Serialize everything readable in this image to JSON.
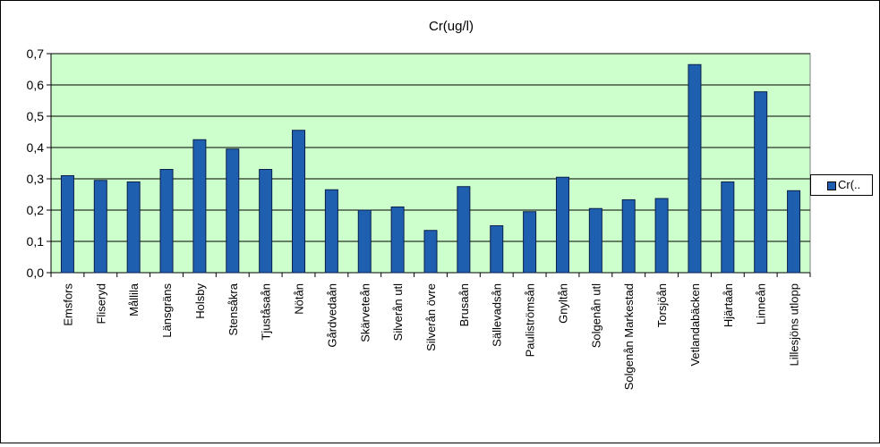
{
  "chart_data": {
    "type": "bar",
    "title": "Cr(ug/l)",
    "xlabel": "",
    "ylabel": "",
    "ylim": [
      0,
      0.7
    ],
    "yticks": [
      "0,0",
      "0,1",
      "0,2",
      "0,3",
      "0,4",
      "0,5",
      "0,6",
      "0,7"
    ],
    "grid": true,
    "legend_position": "right",
    "categories": [
      "Emsfors",
      "Fliseryd",
      "Mållila",
      "Länsgräns",
      "Holsby",
      "Stensåkra",
      "Tjuståsaån",
      "Nötån",
      "Gårdvedaån",
      "Skärveteån",
      "Silverån utl",
      "Silverån övre",
      "Brusaån",
      "Sällevadsån",
      "Pauliströmsån",
      "Gnyltån",
      "Solgenån utl",
      "Solgenån Markestad",
      "Torsjöån",
      "Vetlandabäcken",
      "Hjärtaån",
      "Linneån",
      "Lillesjöns utlopp"
    ],
    "series": [
      {
        "name": "Cr(..",
        "values": [
          0.31,
          0.295,
          0.29,
          0.33,
          0.425,
          0.395,
          0.33,
          0.455,
          0.265,
          0.2,
          0.21,
          0.135,
          0.275,
          0.15,
          0.195,
          0.305,
          0.205,
          0.233,
          0.237,
          0.665,
          0.29,
          0.578,
          0.262
        ]
      }
    ],
    "colors": {
      "plot_background": "#ccffcc",
      "bar_fill": "#1f5fb0",
      "bar_stroke": "#0a1e4a",
      "gridline": "#000000"
    }
  }
}
